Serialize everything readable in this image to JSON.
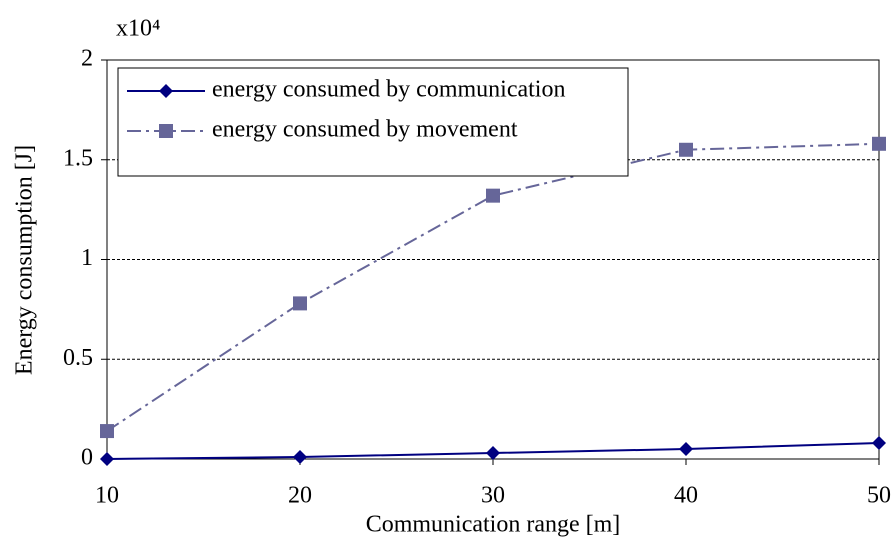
{
  "chart_data": {
    "type": "line",
    "axis_multiplier": "x10⁴",
    "xlabel": "Communication range [m]",
    "ylabel": "Energy consumption [J]",
    "x": [
      10,
      20,
      30,
      40,
      50
    ],
    "series": [
      {
        "name": "energy consumed by communication",
        "color": "#000080",
        "marker": "diamond",
        "linestyle": "solid",
        "values": [
          0.0,
          0.01,
          0.03,
          0.05,
          0.08
        ]
      },
      {
        "name": "energy consumed by movement",
        "color": "#666699",
        "marker": "square",
        "linestyle": "dashdot",
        "values": [
          0.14,
          0.78,
          1.32,
          1.55,
          1.58
        ]
      }
    ],
    "xlim": [
      10,
      50
    ],
    "xticks": [
      10,
      20,
      30,
      40,
      50
    ],
    "ylim": [
      0,
      2
    ],
    "yticks": [
      0,
      0.5,
      1,
      1.5,
      2
    ],
    "grid": true,
    "legend": "upper left"
  }
}
